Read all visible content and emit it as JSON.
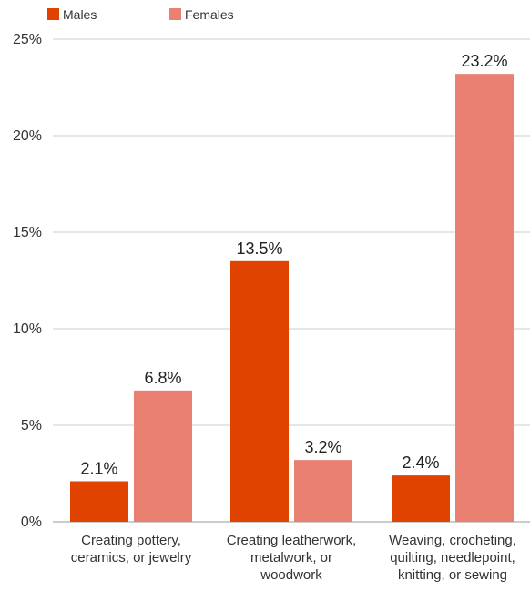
{
  "chart_data": {
    "type": "bar",
    "categories": [
      [
        "Creating pottery,",
        "ceramics, or jewelry"
      ],
      [
        "Creating leatherwork,",
        "metalwork, or",
        "woodwork"
      ],
      [
        "Weaving, crocheting,",
        "quilting, needlepoint,",
        "knitting, or sewing"
      ]
    ],
    "series": [
      {
        "name": "Males",
        "color": "#E04300",
        "values": [
          2.1,
          13.5,
          2.4
        ],
        "labels": [
          "2.1%",
          "13.5%",
          "2.4%"
        ]
      },
      {
        "name": "Females",
        "color": "#E98071",
        "values": [
          6.8,
          3.2,
          23.2
        ],
        "labels": [
          "6.8%",
          "3.2%",
          "23.2%"
        ]
      }
    ],
    "yticks": [
      0,
      5,
      10,
      15,
      20,
      25
    ],
    "ytick_labels": [
      "0%",
      "5%",
      "10%",
      "15%",
      "20%",
      "25%"
    ],
    "ylim": [
      0,
      25
    ],
    "grid": true,
    "legend": "top-left"
  }
}
